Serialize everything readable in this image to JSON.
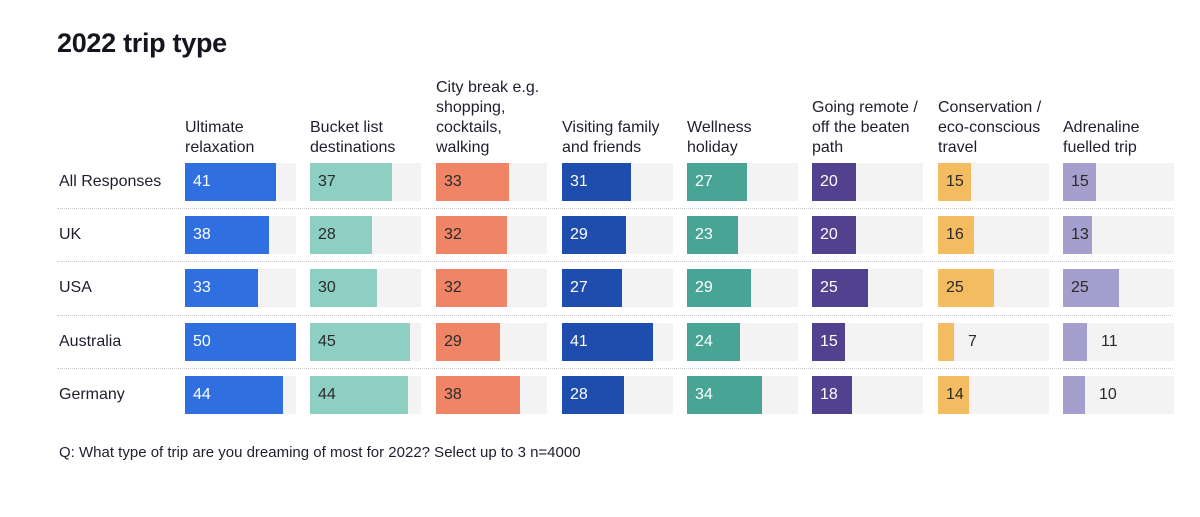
{
  "chart_data": {
    "type": "table",
    "title": "2022 trip type",
    "columns": [
      {
        "label": "Ultimate relaxation",
        "color": "#2f6fe0"
      },
      {
        "label": "Bucket list destinations",
        "color": "#8dd0c3"
      },
      {
        "label": "City break e.g. shopping, cocktails, walking",
        "color": "#ef8466"
      },
      {
        "label": "Visiting family and friends",
        "color": "#1f4dad"
      },
      {
        "label": "Wellness holiday",
        "color": "#48a596"
      },
      {
        "label": "Going remote / off the beaten path",
        "color": "#51418f"
      },
      {
        "label": "Conservation / eco-conscious travel",
        "color": "#f4bc60"
      },
      {
        "label": "Adrenaline fuelled trip",
        "color": "#a59fcd"
      }
    ],
    "rows": [
      {
        "label": "All Responses",
        "values": [
          41,
          37,
          33,
          31,
          27,
          20,
          15,
          15
        ]
      },
      {
        "label": "UK",
        "values": [
          38,
          28,
          32,
          29,
          23,
          20,
          16,
          13
        ]
      },
      {
        "label": "USA",
        "values": [
          33,
          30,
          32,
          27,
          29,
          25,
          25,
          25
        ]
      },
      {
        "label": "Australia",
        "values": [
          50,
          45,
          29,
          41,
          24,
          15,
          7,
          11
        ]
      },
      {
        "label": "Germany",
        "values": [
          44,
          44,
          38,
          28,
          34,
          18,
          14,
          10
        ]
      }
    ],
    "xlim": [
      0,
      50
    ]
  },
  "footnote": "Q: What type of trip are you dreaming of most for 2022? Select up to 3 n=4000"
}
